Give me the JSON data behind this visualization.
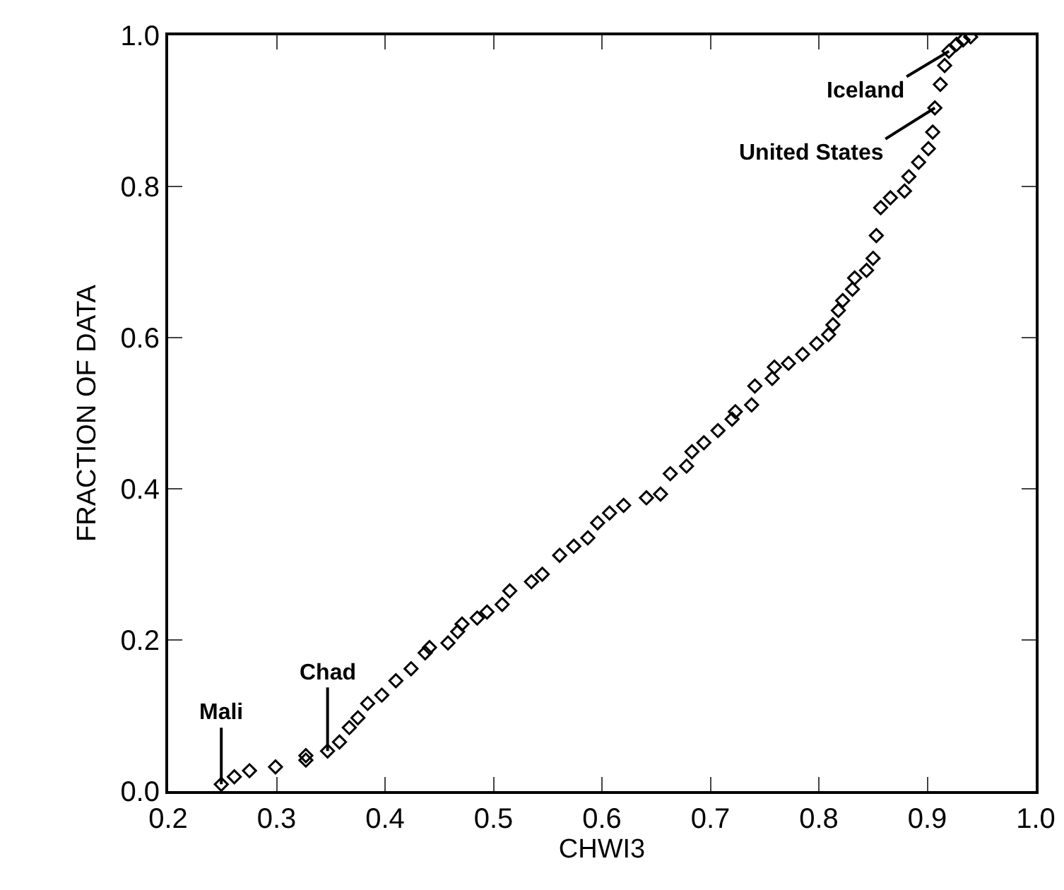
{
  "chart_data": {
    "type": "scatter",
    "xlabel": "CHWI3",
    "ylabel": "FRACTION OF DATA",
    "marker": "diamond",
    "grid": false,
    "xlim": [
      0.2,
      1.0
    ],
    "xticks": [
      {
        "value": 0.2,
        "label": "0.2"
      },
      {
        "value": 0.3,
        "label": "0.3"
      },
      {
        "value": 0.4,
        "label": "0.4"
      },
      {
        "value": 0.5,
        "label": "0.5"
      },
      {
        "value": 0.6,
        "label": "0.6"
      },
      {
        "value": 0.7,
        "label": "0.7"
      },
      {
        "value": 0.8,
        "label": "0.8"
      },
      {
        "value": 0.9,
        "label": "0.9"
      },
      {
        "value": 1.0,
        "label": "1.0"
      }
    ],
    "ylim": [
      0.0,
      1.0
    ],
    "yticks": [
      {
        "value": 0.0,
        "label": "0.0"
      },
      {
        "value": 0.2,
        "label": "0.2"
      },
      {
        "value": 0.4,
        "label": "0.4"
      },
      {
        "value": 0.6,
        "label": "0.6"
      },
      {
        "value": 0.8,
        "label": "0.8"
      },
      {
        "value": 1.0,
        "label": "1.0"
      }
    ],
    "series": [
      {
        "color": "#000000",
        "x": [
          0.249,
          0.261,
          0.275,
          0.299,
          0.327,
          0.327,
          0.347,
          0.358,
          0.367,
          0.375,
          0.384,
          0.397,
          0.41,
          0.424,
          0.437,
          0.441,
          0.458,
          0.467,
          0.471,
          0.485,
          0.494,
          0.508,
          0.515,
          0.535,
          0.545,
          0.561,
          0.574,
          0.587,
          0.596,
          0.607,
          0.62,
          0.641,
          0.654,
          0.663,
          0.678,
          0.683,
          0.694,
          0.707,
          0.72,
          0.723,
          0.738,
          0.741,
          0.757,
          0.759,
          0.772,
          0.785,
          0.798,
          0.809,
          0.813,
          0.818,
          0.822,
          0.831,
          0.833,
          0.844,
          0.85,
          0.853,
          0.857,
          0.866,
          0.879,
          0.883,
          0.892,
          0.901,
          0.905,
          0.907,
          0.912,
          0.916,
          0.92,
          0.927,
          0.933,
          0.94
        ],
        "values": [
          0.009,
          0.019,
          0.027,
          0.032,
          0.041,
          0.047,
          0.053,
          0.065,
          0.084,
          0.097,
          0.116,
          0.127,
          0.146,
          0.162,
          0.183,
          0.19,
          0.196,
          0.211,
          0.221,
          0.229,
          0.237,
          0.247,
          0.265,
          0.277,
          0.287,
          0.312,
          0.324,
          0.335,
          0.355,
          0.368,
          0.378,
          0.388,
          0.393,
          0.42,
          0.43,
          0.449,
          0.461,
          0.477,
          0.492,
          0.502,
          0.511,
          0.536,
          0.546,
          0.561,
          0.566,
          0.578,
          0.592,
          0.604,
          0.617,
          0.636,
          0.649,
          0.664,
          0.679,
          0.689,
          0.705,
          0.735,
          0.772,
          0.785,
          0.794,
          0.813,
          0.832,
          0.85,
          0.872,
          0.904,
          0.935,
          0.96,
          0.979,
          0.988,
          0.994,
          0.998
        ]
      }
    ],
    "annotations": [
      {
        "text": "Mali",
        "x": 0.249,
        "y": 0.009
      },
      {
        "text": "Chad",
        "x": 0.347,
        "y": 0.053
      },
      {
        "text": "United States",
        "x": 0.907,
        "y": 0.904
      },
      {
        "text": "Iceland",
        "x": 0.92,
        "y": 0.979
      }
    ]
  }
}
